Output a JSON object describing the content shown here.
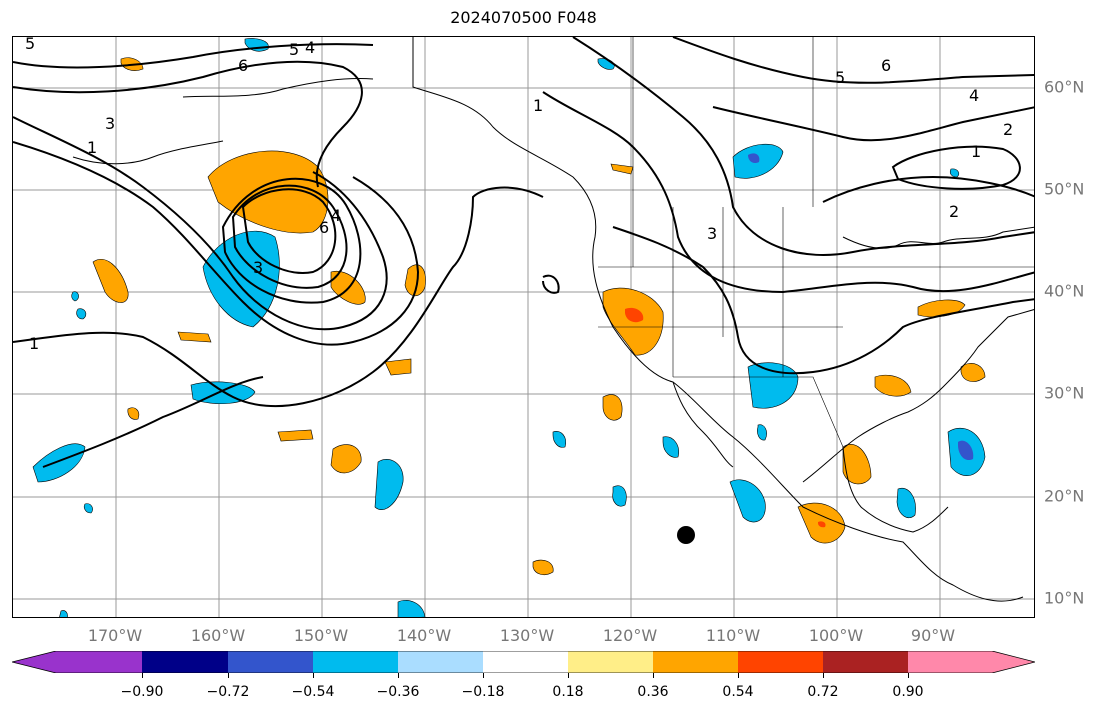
{
  "title": "2024070500 F048",
  "lon_labels": [
    "170°W",
    "160°W",
    "150°W",
    "140°W",
    "130°W",
    "120°W",
    "110°W",
    "100°W",
    "90°W"
  ],
  "lat_labels": [
    "60°N",
    "50°N",
    "40°N",
    "30°N",
    "20°N",
    "10°N"
  ],
  "contour_labels": [
    "5",
    "6",
    "5",
    "4",
    "3",
    "1",
    "1",
    "1",
    "3",
    "5",
    "6",
    "4",
    "2",
    "1",
    "2",
    "4",
    "6",
    "3"
  ],
  "colorbar": {
    "ticks": [
      "−0.90",
      "−0.72",
      "−0.54",
      "−0.36",
      "−0.18",
      "0.18",
      "0.36",
      "0.54",
      "0.72",
      "0.90"
    ],
    "colors": [
      "#9933cc",
      "#000088",
      "#3355cc",
      "#00bbee",
      "#aaddff",
      "#ffffff",
      "#ffee88",
      "#ffa500",
      "#ff4400",
      "#aa2222",
      "#ff88aa"
    ]
  },
  "marker": "storm-center-dot"
}
